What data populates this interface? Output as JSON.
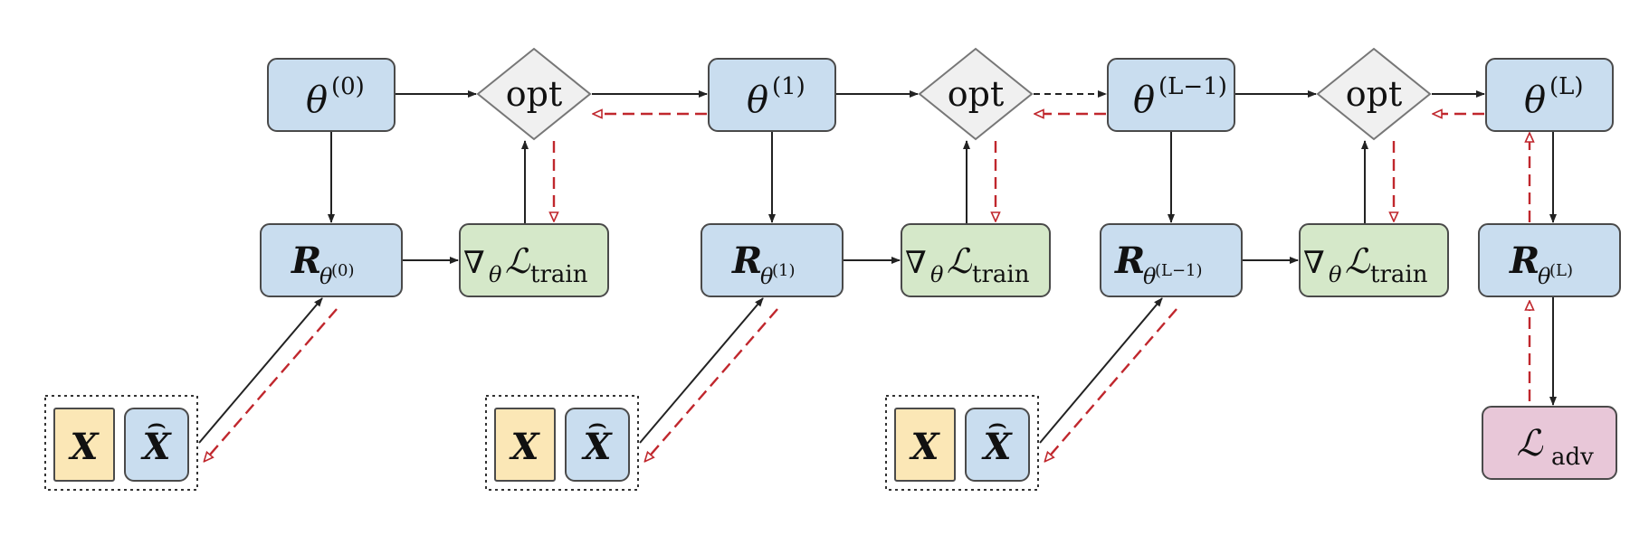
{
  "colors": {
    "param_fill": "#c9ddef",
    "grad_fill": "#d5e8c9",
    "data_fill": "#fbe7b6",
    "loss_fill": "#e8c7d8",
    "opt_fill": "#f0f0f0",
    "stroke": "#4a4a4a",
    "forward_arrow": "#222222",
    "backward_arrow": "#c0272d"
  },
  "stages": [
    {
      "theta": "θ",
      "theta_sup": "(0)",
      "r_main": "R",
      "r_sub": "θ",
      "r_sup": "(0)"
    },
    {
      "theta": "θ",
      "theta_sup": "(1)",
      "r_main": "R",
      "r_sub": "θ",
      "r_sup": "(1)"
    },
    {
      "theta": "θ",
      "theta_sup": "(L−1)",
      "r_main": "R",
      "r_sub": "θ",
      "r_sup": "(L−1)"
    }
  ],
  "final": {
    "theta": "θ",
    "theta_sup": "(L)",
    "r_main": "R",
    "r_sub": "θ",
    "r_sup": "(L)"
  },
  "opt_label": "opt",
  "grad": {
    "nabla": "∇",
    "sub": "θ",
    "loss": "ℒ",
    "loss_sub": "train"
  },
  "data": {
    "x": "X",
    "xhat": "X",
    "hat": "⌢"
  },
  "loss_adv": {
    "loss": "ℒ",
    "sub": "adv"
  }
}
